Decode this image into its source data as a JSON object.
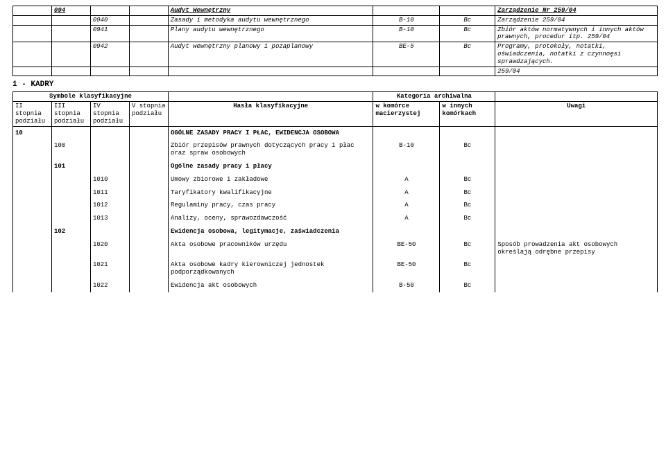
{
  "top_table": {
    "rows": [
      {
        "c2": "094",
        "c5": "Audyt Wewnętrzny",
        "c8": "Zarządzenie Nr 259/04",
        "underline_c2": true,
        "underline_c5": true,
        "underline_c8": true,
        "bold": true,
        "italic": true
      },
      {
        "c3": "0940",
        "c5": "Zasady i metodyka audytu wewnętrznego",
        "c6": "B-10",
        "c7": "Bc",
        "c8": "Zarządzenie 259/04",
        "italic": true
      },
      {
        "c3": "0941",
        "c5": "Plany audytu wewnętrznego",
        "c6": "B-10",
        "c7": "Bc",
        "c8": "Zbiór aktów normatywnych i innych aktów prawnych, procedur itp.        259/04",
        "italic": true
      },
      {
        "c3": "0942",
        "c5": "Audyt wewnętrzny planowy i pozaplanowy",
        "c6": "BE-5",
        "c7": "Bc",
        "c8": "Programy, protokoły, notatki, oświadczenia, notatki z czynnoęsi sprawdzających.",
        "italic": true
      },
      {
        "c8": "259/04",
        "italic": true
      }
    ]
  },
  "section_1_title": "1 -  KADRY",
  "header_row": {
    "sym": "Symbole klasyfikacyjne",
    "kat": "Kategoria archiwalna"
  },
  "sub_header": {
    "c1": "II stopnia podziału",
    "c2": "III stopnia podziału",
    "c3": "IV stopnia podziału",
    "c4": "V stopnia podziału",
    "c5": "Hasła klasyfikacyjne",
    "c6": "w komórce macierzystej",
    "c7": "w innych komórkach",
    "c8": "Uwagi"
  },
  "rows2": [
    {
      "c1": "10",
      "c5": "OGÓLNE ZASADY PRACY I PŁAC, EWIDENCJA OSOBOWA",
      "bold5": true,
      "bold1": true
    },
    {
      "c2": "100",
      "c5": "Zbiór przepisów prawnych dotyczących pracy i płac oraz spraw osobowych",
      "c6": "B-10",
      "c7": "Bc"
    },
    {
      "c2": "101",
      "c5": "Ogólne zasady pracy i płacy",
      "bold": true
    },
    {
      "c3": "1010",
      "c5": "Umowy zbiorowe i zakładowe",
      "c6": "A",
      "c7": "Bc"
    },
    {
      "c3": "1011",
      "c5": "Taryfikatory kwalifikacyjne",
      "c6": "A",
      "c7": "Bc"
    },
    {
      "c3": "1012",
      "c5": "Regulaminy pracy, czas pracy",
      "c6": "A",
      "c7": "Bc"
    },
    {
      "c3": "1013",
      "c5": "Analizy, oceny, sprawozdawczość",
      "c6": "A",
      "c7": "Bc"
    },
    {
      "c2": "102",
      "c5": "Ewidencja osobowa, legitymacje, zaświadczenia",
      "bold": true
    },
    {
      "c3": "1020",
      "c5": "Akta osobowe pracowników urzędu",
      "c6": "BE-50",
      "c7": "Bc",
      "c8": "Sposób prowadzenia akt osobowych określają odrębne przepisy"
    },
    {
      "c3": "1021",
      "c5": "Akta osobowe kadry kierowniczej jednostek podporządkowanych",
      "c6": "BE-50",
      "c7": "Bc"
    },
    {
      "c3": "1022",
      "c5": "Ewidencja akt osobowych",
      "c6": "B-50",
      "c7": "Bc"
    }
  ]
}
